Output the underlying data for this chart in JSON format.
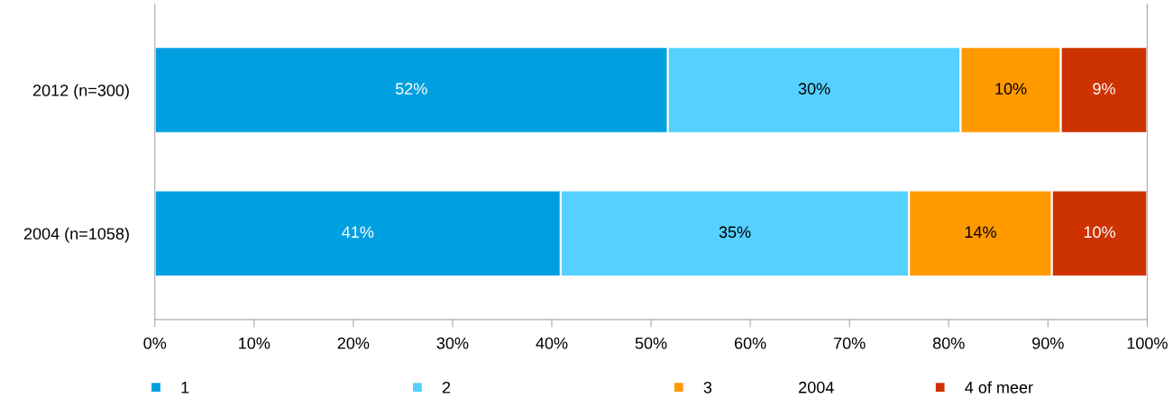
{
  "chart_data": {
    "type": "bar",
    "orientation": "horizontal",
    "stacked": true,
    "categories": [
      "2012 (n=300)",
      "2004 (n=1058)"
    ],
    "series": [
      {
        "name": "1",
        "color": "#00a0e0",
        "values": [
          51.7,
          40.9
        ],
        "value_labels": [
          "52%",
          "41%"
        ]
      },
      {
        "name": "2",
        "color": "#55d0ff",
        "values": [
          29.5,
          35.1
        ],
        "value_labels": [
          "30%",
          "35%"
        ]
      },
      {
        "name": "3",
        "color": "#ff9900",
        "values": [
          10.1,
          14.4
        ],
        "value_labels": [
          "10%",
          "14%"
        ]
      },
      {
        "name": "4 of meer",
        "color": "#cc3300",
        "values": [
          8.7,
          9.6
        ],
        "value_labels": [
          "9%",
          "10%"
        ]
      }
    ],
    "xlim": [
      0,
      100
    ],
    "xticks": [
      {
        "value": 0,
        "label": "0%"
      },
      {
        "value": 10,
        "label": "10%"
      },
      {
        "value": 20,
        "label": "20%"
      },
      {
        "value": 30,
        "label": "30%"
      },
      {
        "value": 40,
        "label": "40%"
      },
      {
        "value": 50,
        "label": "50%"
      },
      {
        "value": 60,
        "label": "60%"
      },
      {
        "value": 70,
        "label": "70%"
      },
      {
        "value": 80,
        "label": "80%"
      },
      {
        "value": 90,
        "label": "90%"
      },
      {
        "value": 100,
        "label": "100%"
      }
    ],
    "legend": "bottom",
    "grid": false,
    "marker": "square",
    "annotations": [
      "2004"
    ]
  }
}
